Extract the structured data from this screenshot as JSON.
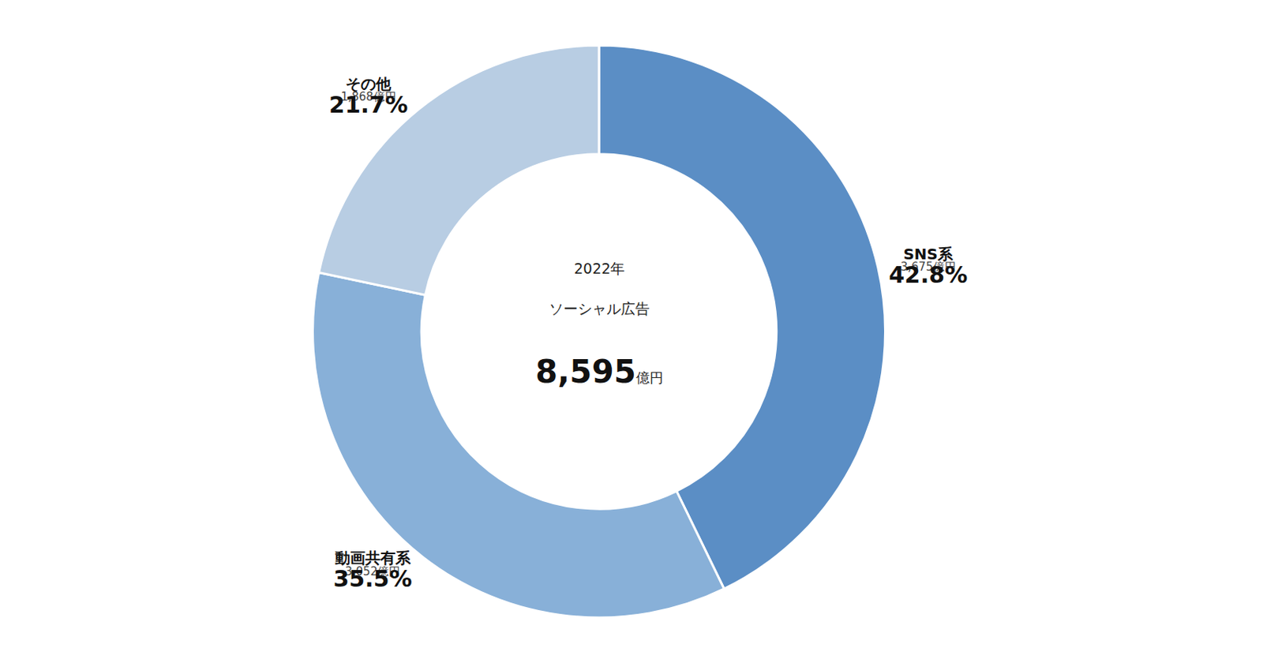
{
  "chart_data": {
    "type": "donut",
    "categories": [
      "SNS系",
      "動画共有系",
      "その他"
    ],
    "values": [
      42.8,
      35.5,
      21.7
    ],
    "value_labels": [
      "42.8%",
      "35.5%",
      "21.7%"
    ],
    "amounts": [
      3675,
      3052,
      1868
    ],
    "amount_labels": [
      "3,675億円",
      "3,052億円",
      "1,868億円"
    ],
    "colors": [
      "#5B8EC5",
      "#88B0D8",
      "#B8CDE3"
    ],
    "data_labels": true,
    "annotations": [
      "2022年",
      "ソーシャル広告"
    ],
    "total": 8595,
    "total_label": "8,595",
    "total_unit": "億円"
  }
}
